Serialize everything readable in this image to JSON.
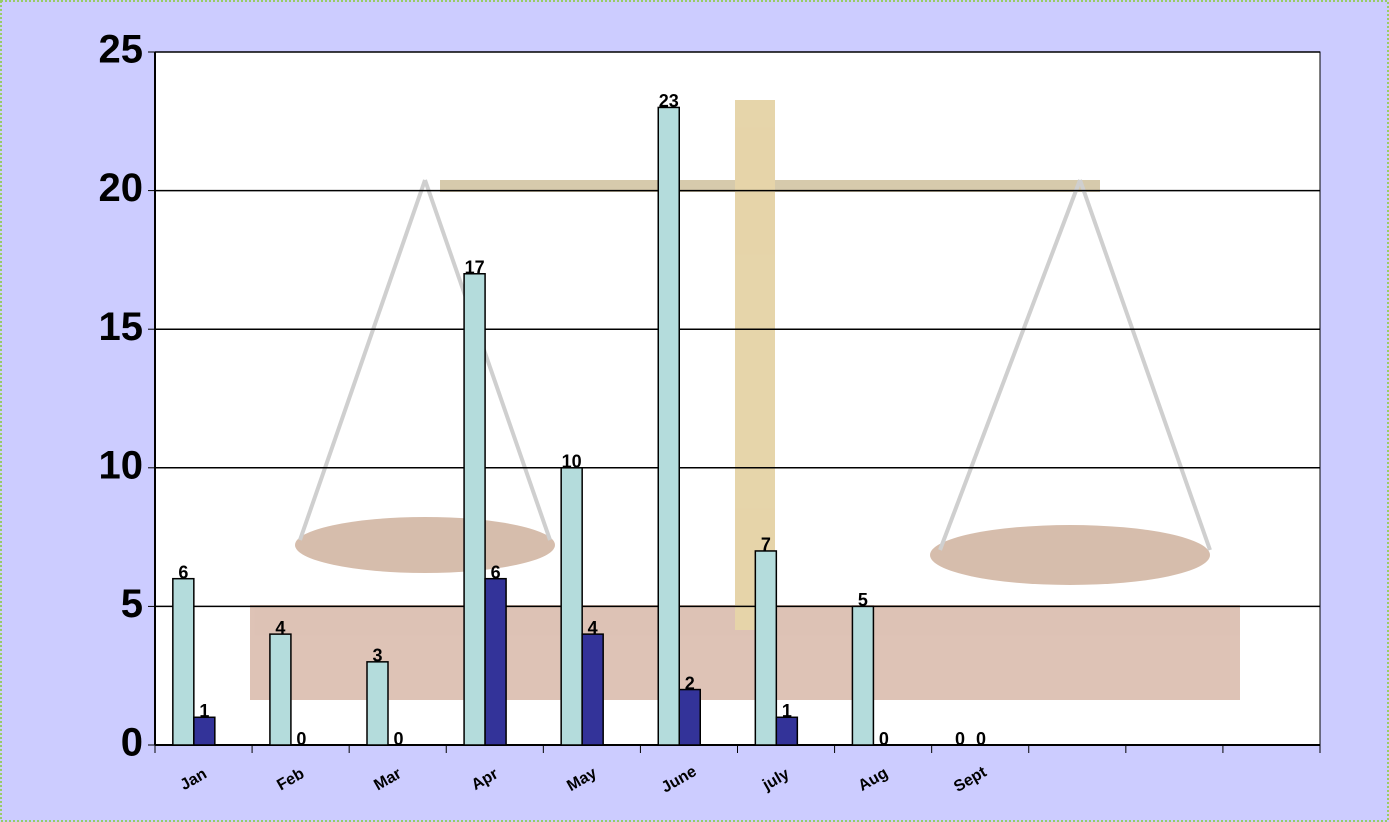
{
  "chart_data": {
    "type": "bar",
    "categories": [
      "Jan",
      "Feb",
      "Mar",
      "Apr",
      "May",
      "June",
      "july",
      "Aug",
      "Sept",
      null,
      null,
      null
    ],
    "series": [
      {
        "color": "#b4dcdc",
        "values": [
          6,
          4,
          3,
          17,
          10,
          23,
          7,
          5,
          0,
          null,
          null,
          null
        ]
      },
      {
        "color": "#333399",
        "values": [
          1,
          0,
          0,
          6,
          4,
          2,
          1,
          0,
          0,
          null,
          null,
          null
        ]
      }
    ],
    "ylim": [
      0,
      25
    ],
    "yticks": [
      0,
      5,
      10,
      15,
      20,
      25
    ],
    "grid": true
  }
}
